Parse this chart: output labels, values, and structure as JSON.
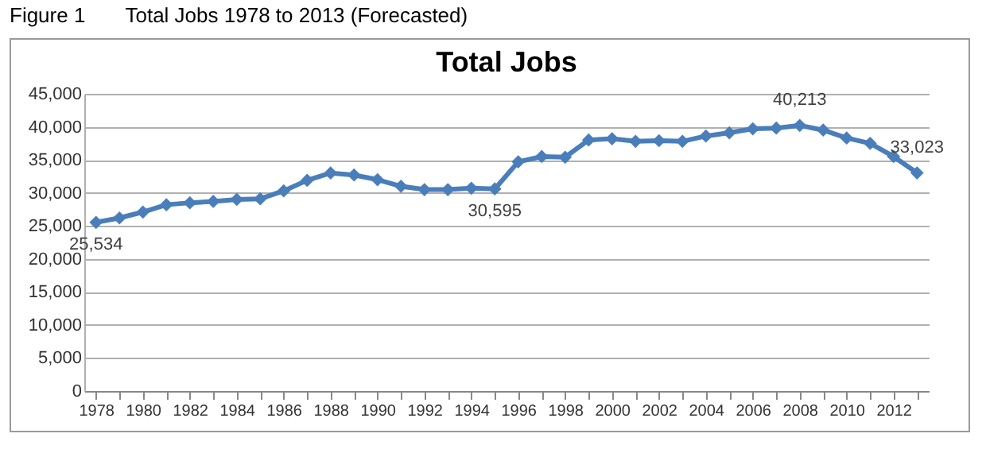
{
  "chart_data": {
    "type": "line",
    "title": "Figure 1       Total Jobs 1978 to 2013 (Forecasted)",
    "subtitle": "Total Jobs",
    "categories": [
      "1978",
      null,
      "1980",
      null,
      "1982",
      null,
      "1984",
      null,
      "1986",
      null,
      "1988",
      null,
      "1990",
      null,
      "1992",
      null,
      "1994",
      null,
      "1996",
      null,
      "1998",
      null,
      "2000",
      null,
      "2002",
      null,
      "2004",
      null,
      "2006",
      null,
      "2008",
      null,
      "2010",
      null,
      "2012",
      null
    ],
    "series": [
      {
        "color": "#4a7ebb",
        "values": [
          25534,
          26200,
          27100,
          28200,
          28500,
          28700,
          29000,
          29100,
          30300,
          31900,
          33000,
          32700,
          32000,
          31000,
          30500,
          30500,
          30700,
          30595,
          34700,
          35500,
          35400,
          38000,
          38200,
          37800,
          37900,
          37800,
          38600,
          39100,
          39700,
          39800,
          40213,
          39500,
          38300,
          37500,
          35500,
          33023
        ],
        "value_labels": [
          "25,534",
          null,
          null,
          null,
          null,
          null,
          null,
          null,
          null,
          null,
          null,
          null,
          null,
          null,
          null,
          null,
          null,
          "30,595",
          null,
          null,
          null,
          null,
          null,
          null,
          null,
          null,
          null,
          null,
          null,
          null,
          "40,213",
          null,
          null,
          null,
          null,
          "33,023"
        ]
      }
    ],
    "ylim": [
      0,
      45000
    ],
    "yticks": [
      0,
      {
        "value": 5000,
        "label": "5,000"
      },
      {
        "value": 10000,
        "label": "10,000"
      },
      {
        "value": 15000,
        "label": "15,000"
      },
      {
        "value": 20000,
        "label": "20,000"
      },
      {
        "value": 25000,
        "label": "25,000"
      },
      {
        "value": 30000,
        "label": "30,000"
      },
      {
        "value": 35000,
        "label": "35,000"
      },
      {
        "value": 40000,
        "label": "40,000"
      },
      {
        "value": 45000,
        "label": "45,000"
      }
    ],
    "grid": "y",
    "marker": "diamond",
    "line_style": "solid"
  }
}
